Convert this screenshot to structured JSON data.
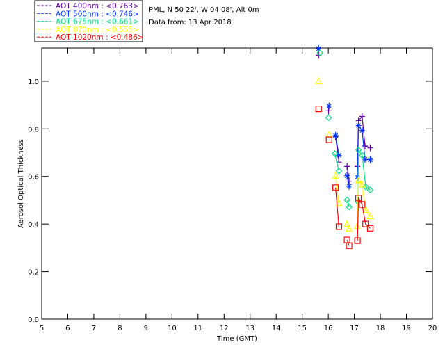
{
  "chart_data": {
    "type": "scatter",
    "title": "",
    "info": [
      "PML, N 50 22', W 04 08', Alt 0m",
      "Data from: 13 Apr 2018"
    ],
    "xlabel": "Time (GMT)",
    "ylabel": "Aerosol Optical Thickness",
    "xlim": [
      5,
      20
    ],
    "ylim": [
      0,
      1.14
    ],
    "xticks": [
      "5",
      "6",
      "7",
      "8",
      "9",
      "10",
      "11",
      "12",
      "13",
      "14",
      "15",
      "16",
      "17",
      "18",
      "19",
      "20"
    ],
    "yticks": [
      "0.0",
      "0.2",
      "0.4",
      "0.6",
      "0.8",
      "1.0"
    ],
    "legend_position": "top-left-outside",
    "series": [
      {
        "name": "AOT  400nm : <0.763>",
        "color": "#6600aa",
        "marker": "plus",
        "x": [
          15.63,
          16.01,
          16.28,
          16.41,
          16.72,
          16.8,
          17.12,
          17.16,
          17.3,
          17.41,
          17.61
        ],
        "y": [
          1.11,
          0.876,
          0.767,
          0.66,
          0.642,
          0.58,
          0.642,
          0.835,
          0.852,
          0.728,
          0.72
        ]
      },
      {
        "name": "AOT  500nm : <0.746>",
        "color": "#0033ff",
        "marker": "asterisk",
        "x": [
          15.63,
          16.03,
          16.28,
          16.41,
          16.72,
          16.8,
          17.12,
          17.16,
          17.3,
          17.41,
          17.61
        ],
        "y": [
          1.137,
          0.896,
          0.772,
          0.689,
          0.603,
          0.559,
          0.598,
          0.814,
          0.793,
          0.672,
          0.67
        ]
      },
      {
        "name": "AOT  675nm : <0.661>",
        "color": "#00e080",
        "marker": "diamond",
        "x": [
          15.68,
          16.01,
          16.25,
          16.41,
          16.72,
          16.8,
          17.14,
          17.16,
          17.3,
          17.44,
          17.61
        ],
        "y": [
          1.12,
          0.847,
          0.696,
          0.623,
          0.501,
          0.472,
          0.494,
          0.711,
          0.689,
          0.556,
          0.543
        ]
      },
      {
        "name": "AOT  870nm : <0.555>",
        "color": "#ffff00",
        "marker": "triangle",
        "x": [
          15.63,
          16.03,
          16.28,
          16.41,
          16.72,
          16.8,
          17.11,
          17.16,
          17.3,
          17.44,
          17.61
        ],
        "y": [
          0.999,
          0.774,
          0.601,
          0.486,
          0.399,
          0.379,
          0.389,
          0.582,
          0.564,
          0.457,
          0.431
        ]
      },
      {
        "name": "AOT 1020nm : <0.486>",
        "color": "#ff0000",
        "marker": "square",
        "x": [
          15.63,
          16.03,
          16.28,
          16.41,
          16.72,
          16.8,
          17.12,
          17.16,
          17.3,
          17.43,
          17.61
        ],
        "y": [
          0.884,
          0.754,
          0.553,
          0.389,
          0.333,
          0.309,
          0.33,
          0.509,
          0.482,
          0.4,
          0.382
        ]
      }
    ]
  }
}
